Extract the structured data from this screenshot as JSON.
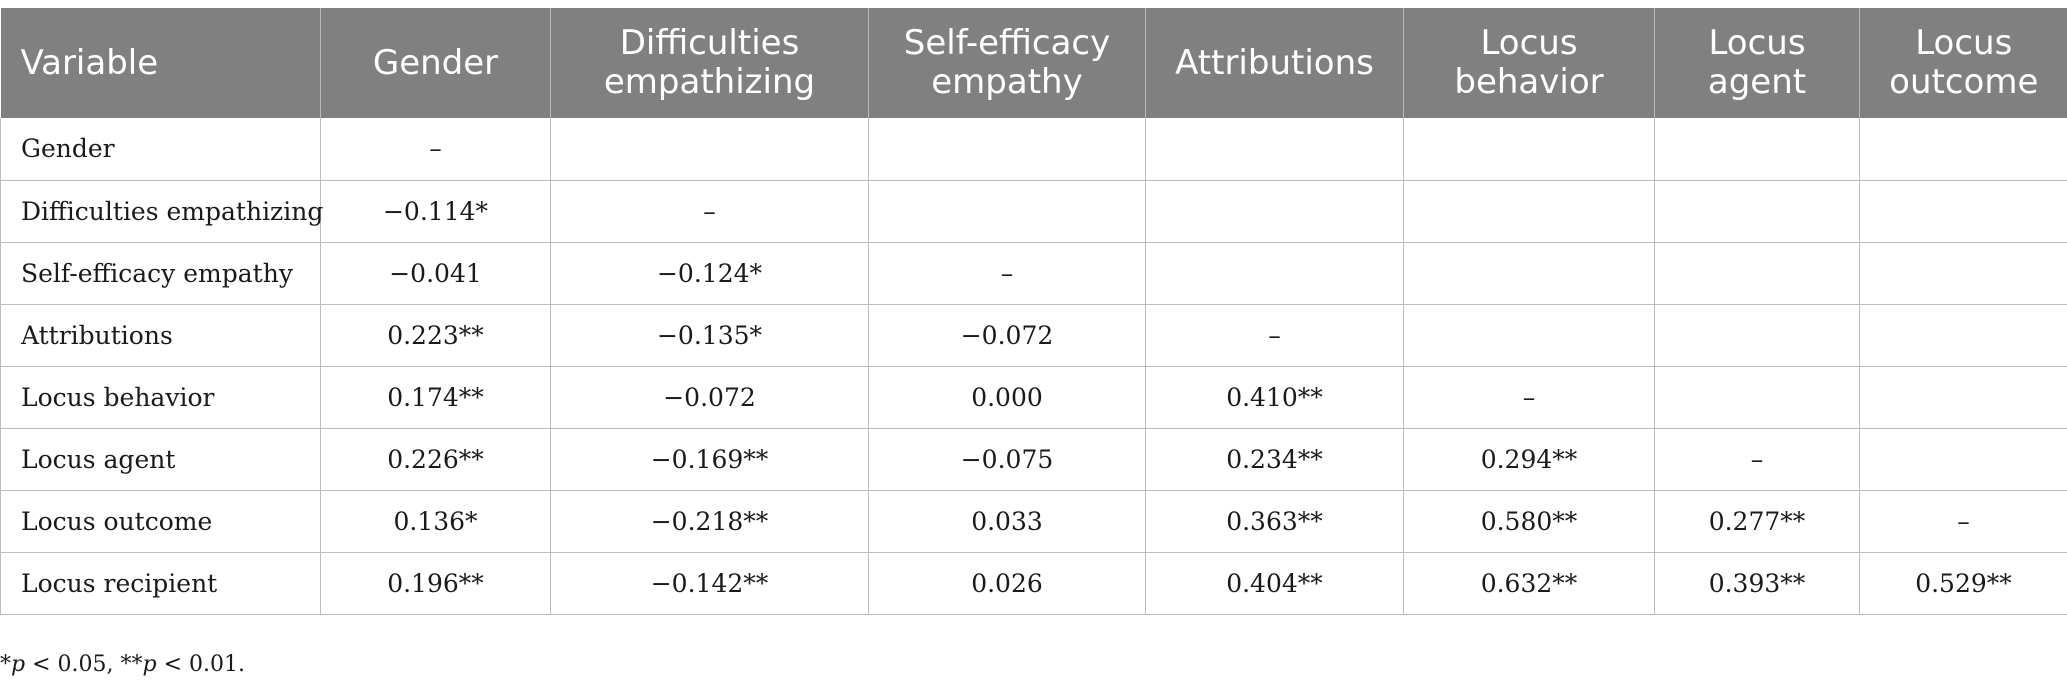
{
  "table": {
    "headers": [
      [
        "Variable"
      ],
      [
        "Gender"
      ],
      [
        "Difficulties",
        "empathizing"
      ],
      [
        "Self-efficacy",
        "empathy"
      ],
      [
        "Attributions"
      ],
      [
        "Locus",
        "behavior"
      ],
      [
        "Locus",
        "agent"
      ],
      [
        "Locus",
        "outcome"
      ]
    ],
    "rows": [
      [
        "Gender",
        "–",
        "",
        "",
        "",
        "",
        "",
        ""
      ],
      [
        "Difficulties empathizing",
        "−0.114*",
        "–",
        "",
        "",
        "",
        "",
        ""
      ],
      [
        "Self-efficacy empathy",
        "−0.041",
        "−0.124*",
        "–",
        "",
        "",
        "",
        ""
      ],
      [
        "Attributions",
        "0.223**",
        "−0.135*",
        "−0.072",
        "–",
        "",
        "",
        ""
      ],
      [
        "Locus behavior",
        "0.174**",
        "−0.072",
        "0.000",
        "0.410**",
        "–",
        "",
        ""
      ],
      [
        "Locus agent",
        "0.226**",
        "−0.169**",
        "−0.075",
        "0.234**",
        "0.294**",
        "–",
        ""
      ],
      [
        "Locus outcome",
        "0.136*",
        "−0.218**",
        "0.033",
        "0.363**",
        "0.580**",
        "0.277**",
        "–"
      ],
      [
        "Locus recipient",
        "0.196**",
        "−0.142**",
        "0.026",
        "0.404**",
        "0.632**",
        "0.393**",
        "0.529**"
      ]
    ]
  },
  "footnote": {
    "star1": "*",
    "p1": "p",
    "t1": " < 0.05, **",
    "p2": "p",
    "t2": " < 0.01."
  }
}
